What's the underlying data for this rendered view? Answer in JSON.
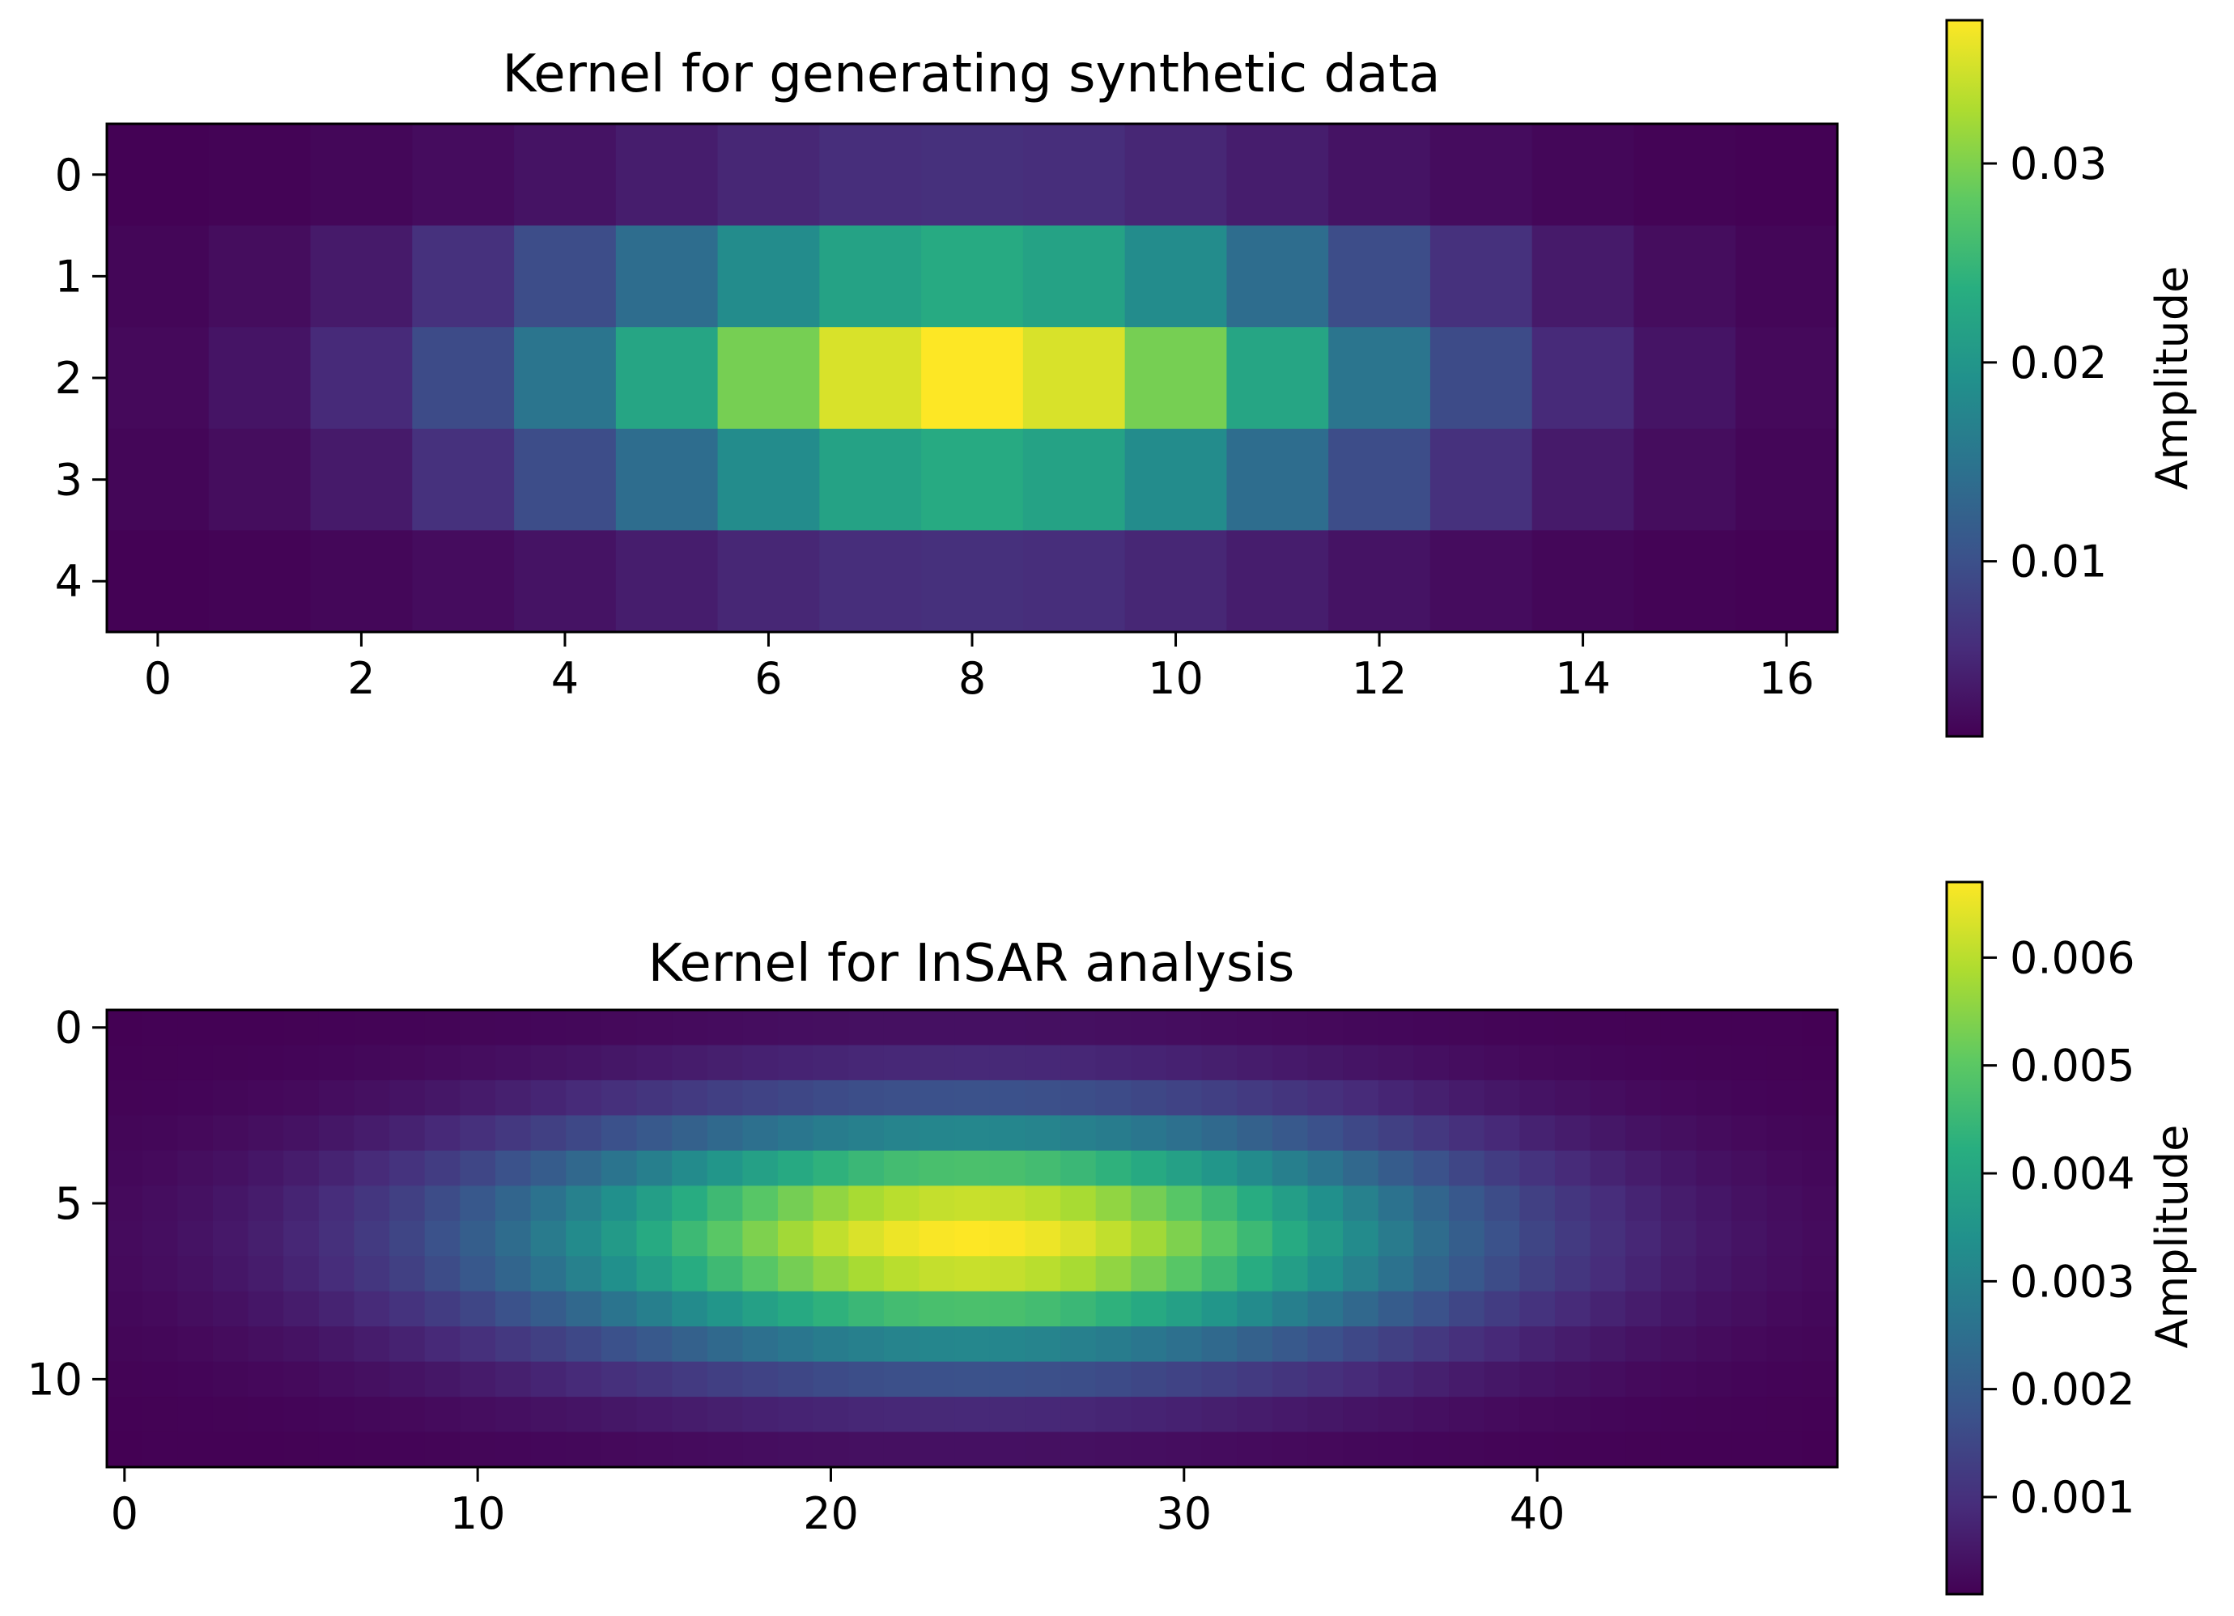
{
  "chart_data": [
    {
      "type": "heatmap",
      "title": "Kernel for generating synthetic data",
      "rows": 5,
      "cols": 17,
      "vmin": 0.0012,
      "vmax": 0.0372,
      "peak_row": 2,
      "peak_col": 8,
      "sigma_row": 1.0,
      "sigma_col": 2.9,
      "xticks": [
        0,
        2,
        4,
        6,
        8,
        10,
        12,
        14,
        16
      ],
      "yticks": [
        0,
        1,
        2,
        3,
        4
      ],
      "xtick_labels": [
        "0",
        "2",
        "4",
        "6",
        "8",
        "10",
        "12",
        "14",
        "16"
      ],
      "ytick_labels": [
        "0",
        "1",
        "2",
        "3",
        "4"
      ],
      "colorbar": {
        "label": "Amplitude",
        "ticks": [
          0.01,
          0.02,
          0.03
        ],
        "tick_labels": [
          "0.01",
          "0.02",
          "0.03"
        ]
      },
      "colormap": "viridis"
    },
    {
      "type": "heatmap",
      "title": "Kernel for InSAR analysis",
      "rows": 13,
      "cols": 49,
      "vmin": 0.0001,
      "vmax": 0.0067,
      "peak_row": 6,
      "peak_col": 24,
      "sigma_row": 2.4,
      "sigma_col": 9.0,
      "xticks": [
        0,
        10,
        20,
        30,
        40
      ],
      "yticks": [
        0,
        5,
        10
      ],
      "xtick_labels": [
        "0",
        "10",
        "20",
        "30",
        "40"
      ],
      "ytick_labels": [
        "0",
        "5",
        "10"
      ],
      "colorbar": {
        "label": "Amplitude",
        "ticks": [
          0.001,
          0.002,
          0.003,
          0.004,
          0.005,
          0.006
        ],
        "tick_labels": [
          "0.001",
          "0.002",
          "0.003",
          "0.004",
          "0.005",
          "0.006"
        ]
      },
      "colormap": "viridis"
    }
  ]
}
